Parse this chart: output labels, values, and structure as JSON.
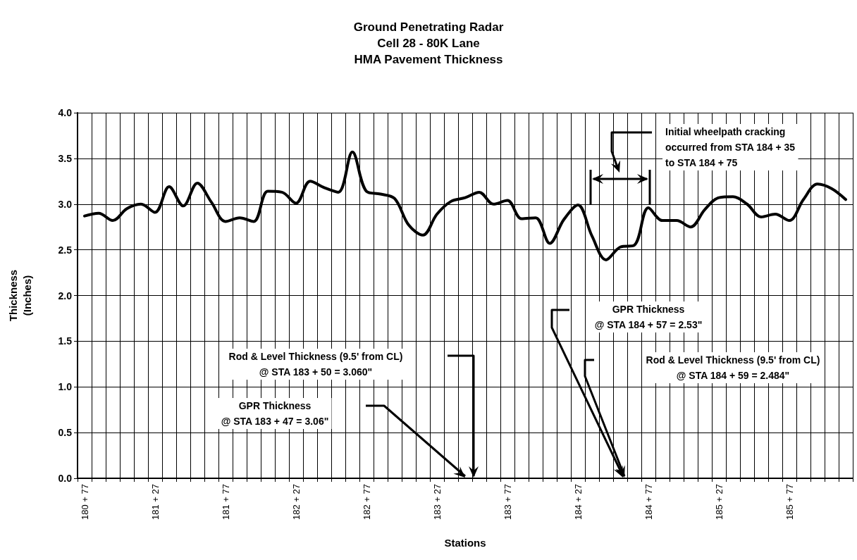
{
  "chart_data": {
    "type": "line",
    "title": "Ground Penetrating Radar\nCell 28 - 80K Lane\nHMA Pavement Thickness",
    "xlabel": "Stations",
    "ylabel": "Thickness\n(Inches)",
    "categories": [
      "180 + 77",
      null,
      null,
      null,
      null,
      "181 + 27",
      null,
      null,
      null,
      null,
      "181 + 77",
      null,
      null,
      null,
      null,
      "182 + 27",
      null,
      null,
      null,
      null,
      "182 + 77",
      null,
      null,
      null,
      null,
      "183 + 27",
      null,
      null,
      null,
      null,
      "183 + 77",
      null,
      null,
      null,
      null,
      "184 + 27",
      null,
      null,
      null,
      null,
      "184 + 77",
      null,
      null,
      null,
      null,
      "185 + 27",
      null,
      null,
      null,
      null,
      "185 + 77",
      null,
      null,
      null,
      null
    ],
    "series": [
      {
        "color": "#000000",
        "values": [
          2.87,
          2.9,
          2.82,
          2.95,
          3.0,
          2.91,
          3.19,
          2.98,
          3.23,
          3.02,
          2.81,
          2.85,
          2.81,
          3.14,
          3.13,
          3.01,
          3.25,
          3.18,
          3.13,
          3.57,
          3.14,
          3.11,
          3.06,
          2.77,
          2.66,
          2.89,
          3.03,
          3.07,
          3.13,
          3.0,
          3.04,
          2.84,
          2.85,
          2.57,
          2.83,
          2.99,
          2.65,
          2.39,
          2.53,
          2.55,
          2.96,
          2.82,
          2.82,
          2.75,
          2.94,
          3.07,
          3.08,
          3.0,
          2.86,
          2.89,
          2.82,
          3.05,
          3.22,
          3.17,
          3.05
        ]
      }
    ],
    "ylim": [
      0,
      4
    ],
    "yticks": [
      {
        "value": 0,
        "label": "0.0"
      },
      {
        "value": 0.5,
        "label": "0.5"
      },
      {
        "value": 1,
        "label": "1.0"
      },
      {
        "value": 1.5,
        "label": "1.5"
      },
      {
        "value": 2,
        "label": "2.0"
      },
      {
        "value": 2.5,
        "label": "2.5"
      },
      {
        "value": 3,
        "label": "3.0"
      },
      {
        "value": 3.5,
        "label": "3.5"
      },
      {
        "value": 4,
        "label": "4.0"
      }
    ],
    "annotations": [
      "Initial wheelpath cracking\noccurred from STA 184 + 35\nto STA 184 + 75",
      "GPR Thickness\n@ STA 184 + 57 = 2.53\"",
      "Rod & Level Thickness (9.5' from CL)\n@ STA 184 + 59 = 2.484\"",
      "Rod & Level Thickness (9.5' from CL)\n@ STA 183 + 50 = 3.060\"",
      "GPR Thickness\n@ STA 183 + 47 = 3.06\""
    ],
    "grid": true,
    "marker": "none",
    "line_style": "solid"
  }
}
